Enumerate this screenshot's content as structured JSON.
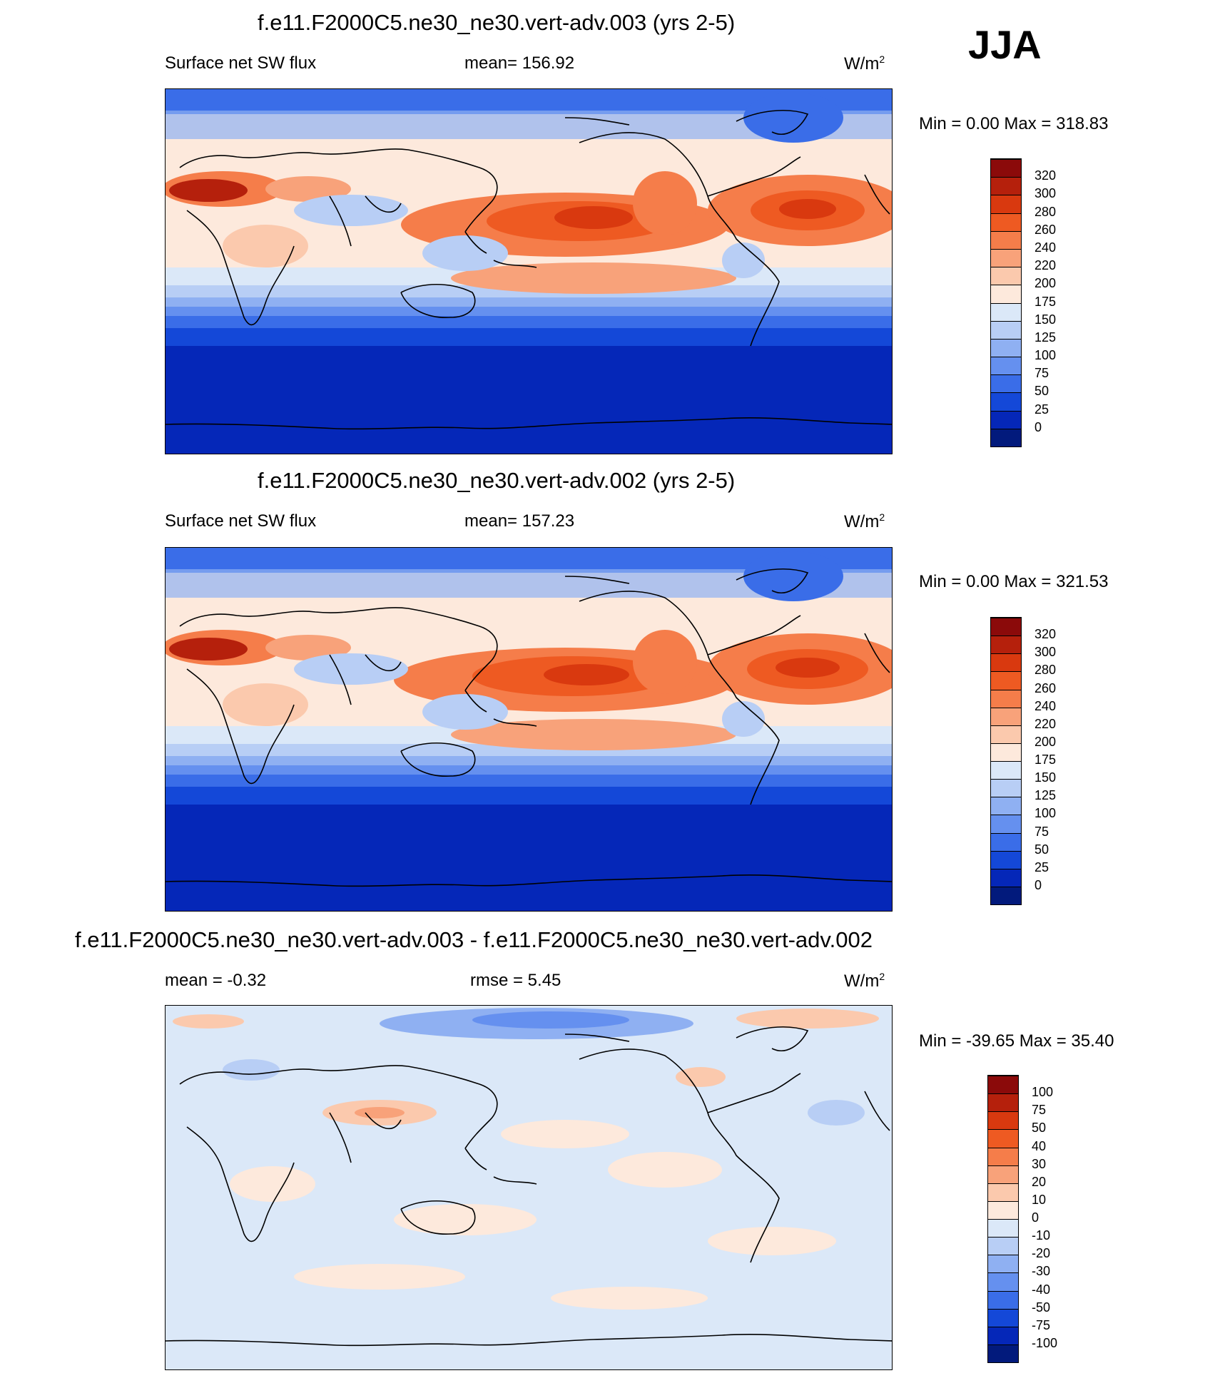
{
  "season": "JJA",
  "panels": [
    {
      "title": "f.e11.F2000C5.ne30_ne30.vert-adv.003 (yrs 2-5)",
      "left_label": "Surface net SW flux",
      "center_label": "mean= 156.92",
      "units": "W/m",
      "units_sup": "2",
      "minmax": "Min =    0.00 Max = 318.83",
      "field": "absolute"
    },
    {
      "title": "f.e11.F2000C5.ne30_ne30.vert-adv.002 (yrs 2-5)",
      "left_label": "Surface net SW flux",
      "center_label": "mean= 157.23",
      "units": "W/m",
      "units_sup": "2",
      "minmax": "Min =    0.00 Max = 321.53",
      "field": "absolute"
    },
    {
      "title": "f.e11.F2000C5.ne30_ne30.vert-adv.003 - f.e11.F2000C5.ne30_ne30.vert-adv.002",
      "left_label": "mean =  -0.32",
      "center_label": "rmse =   5.45",
      "units": "W/m",
      "units_sup": "2",
      "minmax": "Min = -39.65 Max =  35.40",
      "field": "difference"
    }
  ],
  "colorbars": {
    "absolute": {
      "levels": [
        "320",
        "300",
        "280",
        "260",
        "240",
        "220",
        "200",
        "175",
        "150",
        "125",
        "100",
        "75",
        "50",
        "25",
        "0"
      ],
      "colors": [
        "#8b0a0a",
        "#b5200c",
        "#d9390f",
        "#ee5a22",
        "#f57d4a",
        "#f8a27a",
        "#fbc9ad",
        "#fde9dc",
        "#dbe8f8",
        "#b8cef5",
        "#8fb0f2",
        "#6590ef",
        "#3a6de8",
        "#1448d8",
        "#0527b8",
        "#021a7c"
      ]
    },
    "difference": {
      "levels": [
        "100",
        "75",
        "50",
        "40",
        "30",
        "20",
        "10",
        "0",
        "-10",
        "-20",
        "-30",
        "-40",
        "-50",
        "-75",
        "-100"
      ],
      "colors": [
        "#8b0a0a",
        "#b5200c",
        "#d9390f",
        "#ee5a22",
        "#f57d4a",
        "#f8a27a",
        "#fbc9ad",
        "#fde9dc",
        "#dbe8f8",
        "#b8cef5",
        "#8fb0f2",
        "#6590ef",
        "#3a6de8",
        "#1448d8",
        "#0527b8",
        "#021a7c"
      ]
    }
  }
}
